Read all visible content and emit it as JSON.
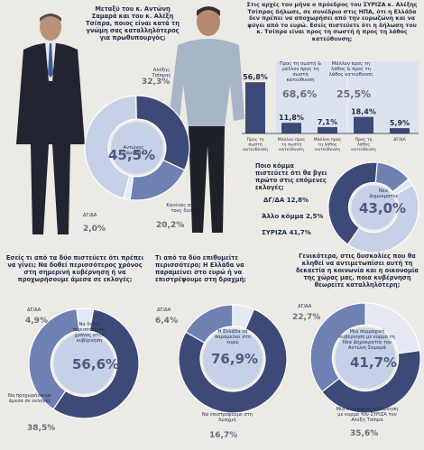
{
  "chart_data": [
    {
      "type": "pie",
      "question": "Μεταξύ του κ. Αντώνη Σαμαρά και του κ. Αλέξη Τσίπρα, ποιος είναι κατά τη γνώμη σας καταλληλότερος για πρωθυπουργός;",
      "slices": [
        {
          "label": "Αντώνης Σαμαράς",
          "value": 45.5
        },
        {
          "label": "Αλέξης Τσίπρας",
          "value": 32.3
        },
        {
          "label": "Κανένας από τους δύο",
          "value": 20.2
        },
        {
          "label": "ΔΓ/ΔΑ",
          "value": 2.0
        }
      ]
    },
    {
      "type": "bar",
      "question": "Στις αρχές του μήνα ο πρόεδρος του ΣΥΡΙΖΑ κ. Αλέξης Τσίπρας δήλωσε, σε συνέδριο στις ΗΠΑ, ότι η Ελλάδα δεν πρέπει να αποχωρήσει από την ευρωζώνη και να φύγει από το ευρώ. Εσείς πιστεύετε ότι η δήλωση του κ. Τσίπρα είναι προς τη σωστή ή προς τη λάθος κατεύθυνση;",
      "categories": [
        "Προς τη σωστή κατεύθυνση",
        "Μάλλον προς τη σωστή κατεύθυνση",
        "Μάλλον προς τη λάθος κατεύθυνση",
        "Προς τη λάθος κατεύθυνση",
        "ΔΓ/ΔΑ"
      ],
      "values": [
        56.8,
        11.8,
        7.1,
        18.4,
        5.9
      ],
      "groups": [
        {
          "label": "Προς τη σωστή & μάλλον προς τη σωστή κατεύθυνση",
          "value": 68.6
        },
        {
          "label": "Μάλλον προς τη λάθος & προς τη λάθος κατεύθυνση",
          "value": 25.5
        }
      ],
      "ylim": [
        0,
        60
      ]
    },
    {
      "type": "pie",
      "question": "Ποιο κόμμα πιστεύετε ότι θα βγει πρώτο στις επόμενες εκλογές;",
      "slices": [
        {
          "label": "Νέα Δημοκρατία",
          "value": 43.0
        },
        {
          "label": "ΣΥΡΙΖΑ",
          "value": 41.7
        },
        {
          "label": "ΔΓ/ΔΑ",
          "value": 12.8
        },
        {
          "label": "Άλλο κόμμα",
          "value": 2.5
        }
      ]
    },
    {
      "type": "pie",
      "question": "Εσείς τι από τα δύο πιστεύετε ότι πρέπει να γίνει; Να δοθεί περισσότερος χρόνος στη σημερινή κυβέρνηση ή να προχωρήσουμε άμεσα σε εκλογές;",
      "slices": [
        {
          "label": "Να δοθεί περισσότερος χρόνος στην κυβέρνηση",
          "value": 56.6
        },
        {
          "label": "Να προχωρήσουμε άμεσα σε εκλογές",
          "value": 38.5
        },
        {
          "label": "ΔΓ/ΔΑ",
          "value": 4.9
        }
      ]
    },
    {
      "type": "pie",
      "question": "Τι από τα δύο επιθυμείτε περισσότερο; Η Ελλάδα να παραμείνει στο ευρώ ή να επιστρέψουμε στη δραχμή;",
      "slices": [
        {
          "label": "Η Ελλάδα να παραμείνει στο ευρώ",
          "value": 76.9
        },
        {
          "label": "Να επιστρέψουμε στη δραχμή",
          "value": 16.7
        },
        {
          "label": "ΔΓ/ΔΑ",
          "value": 6.4
        }
      ]
    },
    {
      "type": "pie",
      "question": "Γενικότερα, στις δυσκολίες που θα κληθεί να αντιμετωπίσει αυτή τη δεκαετία η κοινωνία και η οικονομία της χώρας μας, ποια κυβέρνηση θεωρείτε καταλληλότερη;",
      "slices": [
        {
          "label": "Μια συμμαχική κυβέρνηση με κορμό τη Νέα Δημοκρατία του Αντώνη Σαμαρά",
          "value": 41.7
        },
        {
          "label": "Μια συμμαχική κυβέρνηση με κορμό τον ΣΥΡΙΖΑ του Αλέξη Τσίπρα",
          "value": 35.6
        },
        {
          "label": "ΔΓ/ΔΑ",
          "value": 22.7
        }
      ]
    }
  ],
  "text": {
    "q1": "Μεταξύ του κ. Αντώνη Σαμαρά και του κ. Αλέξη Τσίπρα, ποιος είναι κατά τη γνώμη σας καταλληλότερος για πρωθυπουργός;",
    "q1_tsipras_label": "Αλέξης Τσίπρας",
    "q1_tsipras_pct": "32,3%",
    "q1_samaras_label": "Αντώνης Σαμαράς",
    "q1_samaras_pct": "45,5%",
    "q1_none_label": "Κανένας από τους δύο",
    "q1_none_pct": "20,2%",
    "q1_dk_label": "ΔΓ/ΔΑ",
    "q1_dk_pct": "2,0%",
    "q2": "Στις αρχές του μήνα ο πρόεδρος του ΣΥΡΙΖΑ κ. Αλέξης Τσίπρας δήλωσε, σε συνέδριο στις ΗΠΑ, ότι η Ελλάδα δεν πρέπει να αποχωρήσει από την ευρωζώνη και να φύγει από το ευρώ. Εσείς πιστεύετε ότι η δήλωση του κ. Τσίπρα είναι προς τη σωστή ή προς τη λάθος κατεύθυνση;",
    "q2_group1_label": "Προς τη σωστή & μάλλον προς τη σωστή κατεύθυνση",
    "q2_group1_pct": "68,6%",
    "q2_group2_label": "Μάλλον προς τη λάθος & προς τη λάθος κατεύθυνση",
    "q2_group2_pct": "25,5%",
    "q2_val1": "56,8%",
    "q2_val2": "11,8%",
    "q2_val3": "7,1%",
    "q2_val4": "18,4%",
    "q2_val5": "5,9%",
    "q2_cat1": "Προς τη σωστή κατεύθυνση",
    "q2_cat2": "Μάλλον προς τη σωστή κατεύθυνση",
    "q2_cat3": "Μάλλον προς τη λάθος κατεύθυνση",
    "q2_cat4": "Προς τη λάθος κατεύθυνση",
    "q2_cat5": "ΔΓ/ΔΑ",
    "q3": "Ποιο κόμμα πιστεύετε ότι θα βγει πρώτο στις επόμενες εκλογές;",
    "q3_dk": "ΔΓ/ΔΑ 12,8%",
    "q3_other": "Άλλο κόμμα 2,5%",
    "q3_syriza": "ΣΥΡΙΖΑ 41,7%",
    "q3_nd_label": "Νέα Δημοκρατία",
    "q3_nd_pct": "43,0%",
    "q4": "Εσείς τι από τα δύο πιστεύετε ότι πρέπει να γίνει; Να δοθεί περισσότερος χρόνος στη σημερινή κυβέρνηση ή να προχωρήσουμε άμεσα σε εκλογές;",
    "q4_dk_label": "ΔΓ/ΔΑ",
    "q4_dk_pct": "4,9%",
    "q4_time_label": "Να δοθεί περισσότερος χρόνος στην κυβέρνηση",
    "q4_time_pct": "56,6%",
    "q4_elect_label": "Να προχωρήσουμε άμεσα σε εκλογές",
    "q4_elect_pct": "38,5%",
    "q5": "Τι από τα δύο επιθυμείτε περισσότερο; Η Ελλάδα να παραμείνει στο ευρώ ή να επιστρέψουμε στη δραχμή;",
    "q5_dk_label": "ΔΓ/ΔΑ",
    "q5_dk_pct": "6,4%",
    "q5_euro_label": "Η Ελλάδα να παραμείνει στο ευρώ",
    "q5_euro_pct": "76,9%",
    "q5_drachma_label": "Να επιστρέψουμε στη δραχμή",
    "q5_drachma_pct": "16,7%",
    "q6": "Γενικότερα, στις δυσκολίες που θα κληθεί να αντιμετωπίσει αυτή τη δεκαετία η κοινωνία και η οικονομία της χώρας μας, ποια κυβέρνηση θεωρείτε καταλληλότερη;",
    "q6_dk_label": "ΔΓ/ΔΑ",
    "q6_dk_pct": "22,7%",
    "q6_nd_label": "Μια συμμαχική κυβέρνηση με κορμό τη Νέα Δημοκρατία του Αντώνη Σαμαρά",
    "q6_nd_pct": "41,7%",
    "q6_syriza_label": "Μια συμμαχική κυβέρνηση με κορμό τον ΣΥΡΙΖΑ του Αλέξη Τσίπρα",
    "q6_syriza_pct": "35,6%"
  },
  "colors": {
    "dark": "#3d4a78",
    "mid": "#6f80b3",
    "light": "#c6d0e6",
    "pale": "#e3e8f2",
    "bg": "#eceae4"
  }
}
